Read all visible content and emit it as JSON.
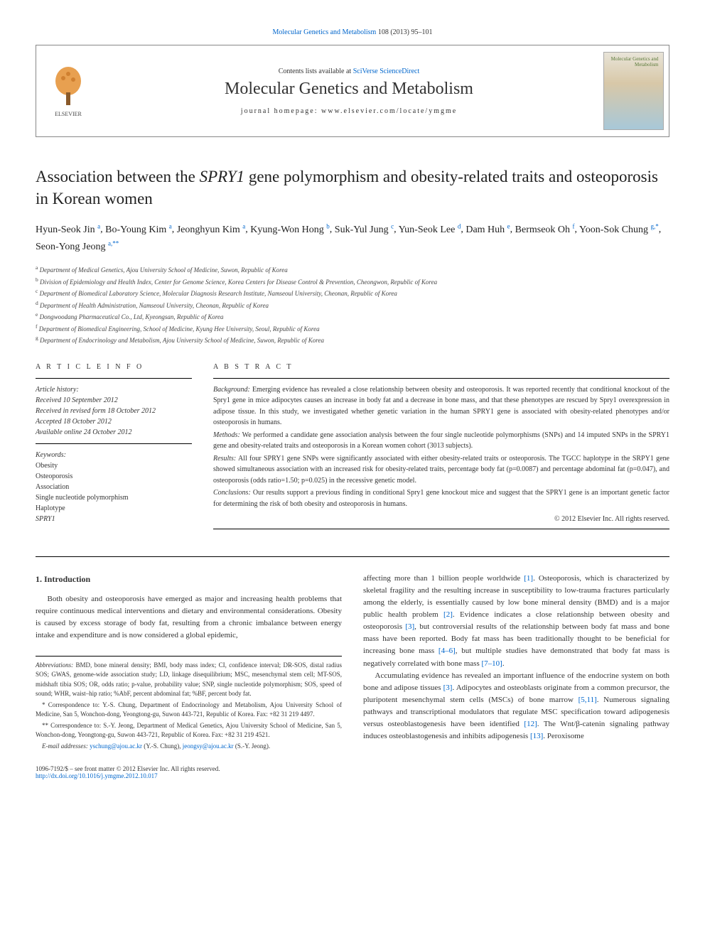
{
  "top_link": {
    "journal": "Molecular Genetics and Metabolism",
    "citation": "108 (2013) 95–101"
  },
  "header": {
    "contents_text": "Contents lists available at",
    "contents_link": "SciVerse ScienceDirect",
    "journal_name": "Molecular Genetics and Metabolism",
    "homepage_label": "journal homepage:",
    "homepage_url": "www.elsevier.com/locate/ymgme",
    "elsevier": "ELSEVIER",
    "cover_title": "Molecular Genetics and Metabolism"
  },
  "title_pre": "Association between the ",
  "title_gene": "SPRY1",
  "title_post": " gene polymorphism and obesity-related traits and osteoporosis in Korean women",
  "authors": [
    {
      "name": "Hyun-Seok Jin",
      "sup": "a"
    },
    {
      "name": "Bo-Young Kim",
      "sup": "a"
    },
    {
      "name": "Jeonghyun Kim",
      "sup": "a"
    },
    {
      "name": "Kyung-Won Hong",
      "sup": "b"
    },
    {
      "name": "Suk-Yul Jung",
      "sup": "c"
    },
    {
      "name": "Yun-Seok Lee",
      "sup": "d"
    },
    {
      "name": "Dam Huh",
      "sup": "e"
    },
    {
      "name": "Bermseok Oh",
      "sup": "f"
    },
    {
      "name": "Yoon-Sok Chung",
      "sup": "g,*"
    },
    {
      "name": "Seon-Yong Jeong",
      "sup": "a,**"
    }
  ],
  "affiliations": [
    {
      "sup": "a",
      "text": "Department of Medical Genetics, Ajou University School of Medicine, Suwon, Republic of Korea"
    },
    {
      "sup": "b",
      "text": "Division of Epidemiology and Health Index, Center for Genome Science, Korea Centers for Disease Control & Prevention, Cheongwon, Republic of Korea"
    },
    {
      "sup": "c",
      "text": "Department of Biomedical Laboratory Science, Molecular Diagnosis Research Institute, Namseoul University, Cheonan, Republic of Korea"
    },
    {
      "sup": "d",
      "text": "Department of Health Administration, Namseoul University, Cheonan, Republic of Korea"
    },
    {
      "sup": "e",
      "text": "Dongwoodang Pharmaceutical Co., Ltd, Kyeongsan, Republic of Korea"
    },
    {
      "sup": "f",
      "text": "Department of Biomedical Engineering, School of Medicine, Kyung Hee University, Seoul, Republic of Korea"
    },
    {
      "sup": "g",
      "text": "Department of Endocrinology and Metabolism, Ajou University School of Medicine, Suwon, Republic of Korea"
    }
  ],
  "info": {
    "heading": "A R T I C L E   I N F O",
    "history_label": "Article history:",
    "received": "Received 10 September 2012",
    "revised": "Received in revised form 18 October 2012",
    "accepted": "Accepted 18 October 2012",
    "online": "Available online 24 October 2012",
    "keywords_label": "Keywords:",
    "keywords": [
      "Obesity",
      "Osteoporosis",
      "Association",
      "Single nucleotide polymorphism",
      "Haplotype",
      "SPRY1"
    ]
  },
  "abstract": {
    "heading": "A B S T R A C T",
    "background_label": "Background:",
    "background": "Emerging evidence has revealed a close relationship between obesity and osteoporosis. It was reported recently that conditional knockout of the Spry1 gene in mice adipocytes causes an increase in body fat and a decrease in bone mass, and that these phenotypes are rescued by Spry1 overexpression in adipose tissue. In this study, we investigated whether genetic variation in the human SPRY1 gene is associated with obesity-related phenotypes and/or osteoporosis in humans.",
    "methods_label": "Methods:",
    "methods": "We performed a candidate gene association analysis between the four single nucleotide polymorphisms (SNPs) and 14 imputed SNPs in the SPRY1 gene and obesity-related traits and osteoporosis in a Korean women cohort (3013 subjects).",
    "results_label": "Results:",
    "results": "All four SPRY1 gene SNPs were significantly associated with either obesity-related traits or osteoporosis. The TGCC haplotype in the SRPY1 gene showed simultaneous association with an increased risk for obesity-related traits, percentage body fat (p=0.0087) and percentage abdominal fat (p=0.047), and osteoporosis (odds ratio=1.50; p=0.025) in the recessive genetic model.",
    "conclusions_label": "Conclusions:",
    "conclusions": "Our results support a previous finding in conditional Spry1 gene knockout mice and suggest that the SPRY1 gene is an important genetic factor for determining the risk of both obesity and osteoporosis in humans.",
    "copyright": "© 2012 Elsevier Inc. All rights reserved."
  },
  "body": {
    "section_heading": "1. Introduction",
    "p1": "Both obesity and osteoporosis have emerged as major and increasing health problems that require continuous medical interventions and dietary and environmental considerations. Obesity is caused by excess storage of body fat, resulting from a chronic imbalance between energy intake and expenditure and is now considered a global epidemic,",
    "p2_a": "affecting more than 1 billion people worldwide ",
    "p2_ref1": "[1]",
    "p2_b": ". Osteoporosis, which is characterized by skeletal fragility and the resulting increase in susceptibility to low-trauma fractures particularly among the elderly, is essentially caused by low bone mineral density (BMD) and is a major public health problem ",
    "p2_ref2": "[2]",
    "p2_c": ". Evidence indicates a close relationship between obesity and osteoporosis ",
    "p2_ref3": "[3]",
    "p2_d": ", but controversial results of the relationship between body fat mass and bone mass have been reported. Body fat mass has been traditionally thought to be beneficial for increasing bone mass ",
    "p2_ref4": "[4–6]",
    "p2_e": ", but multiple studies have demonstrated that body fat mass is negatively correlated with bone mass ",
    "p2_ref5": "[7–10]",
    "p2_f": ".",
    "p3_a": "Accumulating evidence has revealed an important influence of the endocrine system on both bone and adipose tissues ",
    "p3_ref1": "[3]",
    "p3_b": ". Adipocytes and osteoblasts originate from a common precursor, the pluripotent mesenchymal stem cells (MSCs) of bone marrow ",
    "p3_ref2": "[5,11]",
    "p3_c": ". Numerous signaling pathways and transcriptional modulators that regulate MSC specification toward adipogenesis versus osteoblastogenesis have been identified ",
    "p3_ref3": "[12]",
    "p3_d": ". The Wnt/β-catenin signaling pathway induces osteoblastogenesis and inhibits adipogenesis ",
    "p3_ref4": "[13]",
    "p3_e": ". Peroxisome"
  },
  "footnotes": {
    "abbrev_label": "Abbreviations:",
    "abbrev": "BMD, bone mineral density; BMI, body mass index; CI, confidence interval; DR-SOS, distal radius SOS; GWAS, genome-wide association study; LD, linkage disequilibrium; MSC, mesenchymal stem cell; MT-SOS, midshaft tibia SOS; OR, odds ratio; p-value, probability value; SNP, single nucleotide polymorphism; SOS, speed of sound; WHR, waist–hip ratio; %AbF, percent abdominal fat; %BF, percent body fat.",
    "corr1": "* Correspondence to: Y.-S. Chung, Department of Endocrinology and Metabolism, Ajou University School of Medicine, San 5, Wonchon-dong, Yeongtong-gu, Suwon 443-721, Republic of Korea. Fax: +82 31 219 4497.",
    "corr2": "** Correspondence to: S.-Y. Jeong, Department of Medical Genetics, Ajou University School of Medicine, San 5, Wonchon-dong, Yeongtong-gu, Suwon 443-721, Republic of Korea. Fax: +82 31 219 4521.",
    "email_label": "E-mail addresses:",
    "email1": "yschung@ajou.ac.kr",
    "email1_name": "(Y.-S. Chung),",
    "email2": "jeongsy@ajou.ac.kr",
    "email2_name": "(S.-Y. Jeong)."
  },
  "footer": {
    "line1": "1096-7192/$ – see front matter © 2012 Elsevier Inc. All rights reserved.",
    "doi": "http://dx.doi.org/10.1016/j.ymgme.2012.10.017"
  },
  "colors": {
    "link": "#0066cc",
    "text": "#333333",
    "border": "#888888"
  }
}
